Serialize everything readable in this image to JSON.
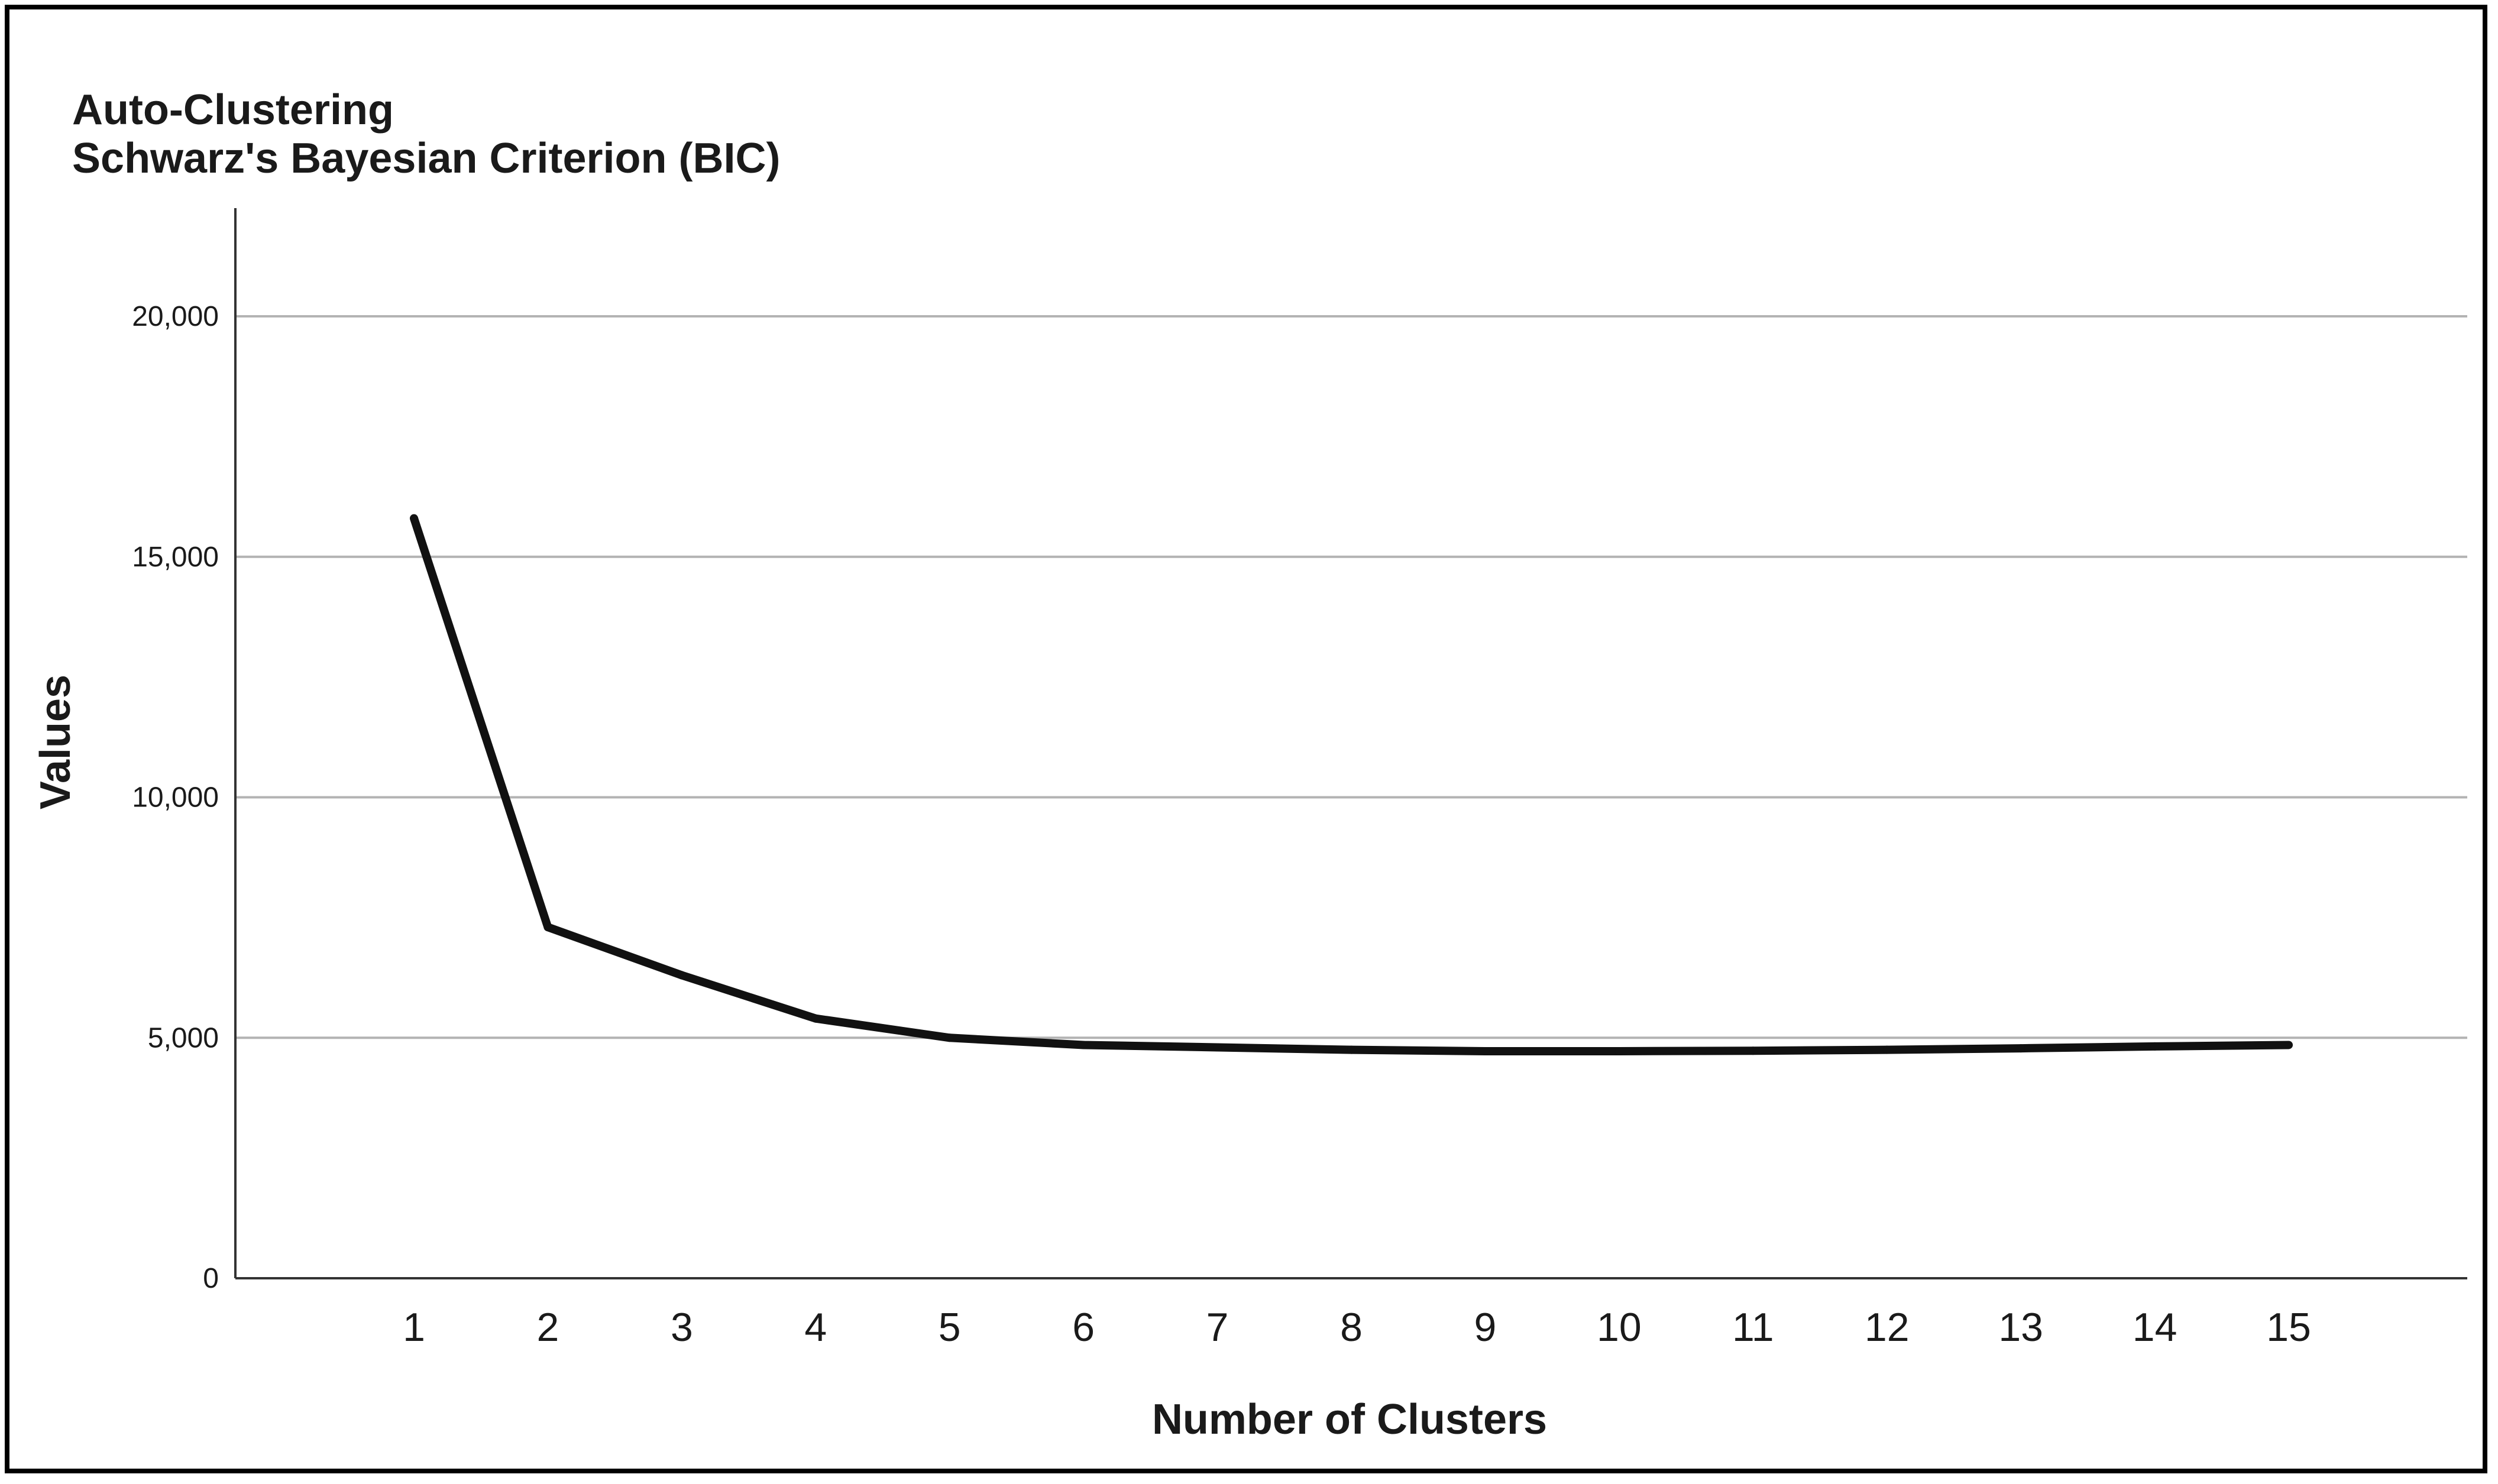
{
  "chart_data": {
    "type": "line",
    "title": "Auto-Clustering",
    "subtitle": "Schwarz's Bayesian Criterion (BIC)",
    "xlabel": "Number of Clusters",
    "ylabel": "Values",
    "x": [
      1,
      2,
      3,
      4,
      5,
      6,
      7,
      8,
      9,
      10,
      11,
      12,
      13,
      14,
      15
    ],
    "series": [
      {
        "values": [
          15800,
          7300,
          6300,
          5400,
          5000,
          4850,
          4800,
          4750,
          4720,
          4720,
          4730,
          4750,
          4780,
          4820,
          4850
        ]
      }
    ],
    "ylim": [
      0,
      22000
    ],
    "y_ticks": [
      0,
      5000,
      10000,
      15000,
      20000
    ],
    "y_tick_labels": [
      "0",
      "5,000",
      "10,000",
      "15,000",
      "20,000"
    ],
    "x_tick_labels": [
      "1",
      "2",
      "3",
      "4",
      "5",
      "6",
      "7",
      "8",
      "9",
      "10",
      "11",
      "12",
      "13",
      "14",
      "15"
    ],
    "grid": "horizontal",
    "colors": {
      "line": "#111111",
      "grid": "#b3b3b3",
      "axis": "#333333",
      "text": "#1a1a1a"
    }
  }
}
